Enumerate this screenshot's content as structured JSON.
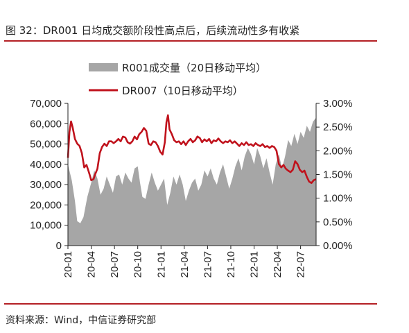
{
  "header": {
    "title": "图 32：DR001 日均成交额阶段性高点后，后续流动性多有收紧"
  },
  "footer": {
    "source": "资料来源：Wind，中信证券研究部"
  },
  "chart_data": {
    "type": "area+line",
    "legend": [
      "R001成交量（20日移动平均）",
      "DR007（10日移动平均）"
    ],
    "x_ticks": [
      "20-01",
      "20-04",
      "20-07",
      "20-10",
      "21-01",
      "21-04",
      "21-07",
      "21-10",
      "22-01",
      "22-04",
      "22-07"
    ],
    "y_left_ticks": [
      "70,000",
      "60,000",
      "50,000",
      "40,000",
      "30,000",
      "20,000",
      "10,000",
      "0"
    ],
    "y_right_ticks": [
      "3.00%",
      "2.50%",
      "2.00%",
      "1.50%",
      "1.00%",
      "0.50%",
      "0.00%"
    ],
    "ylim_left": [
      0,
      70000
    ],
    "ylim_right": [
      0,
      3.0
    ],
    "x_range_months": [
      0,
      32
    ],
    "series": [
      {
        "name": "R001成交量（20日移动平均）",
        "kind": "area",
        "color": "#a6a6a6",
        "points": [
          [
            0,
            40000
          ],
          [
            0.5,
            32000
          ],
          [
            0.9,
            22000
          ],
          [
            1.2,
            12000
          ],
          [
            1.6,
            11000
          ],
          [
            2.0,
            14000
          ],
          [
            2.5,
            24000
          ],
          [
            3.0,
            31000
          ],
          [
            3.4,
            37000
          ],
          [
            3.8,
            33000
          ],
          [
            4.2,
            25000
          ],
          [
            4.6,
            28000
          ],
          [
            5.0,
            34000
          ],
          [
            5.4,
            30000
          ],
          [
            5.8,
            26000
          ],
          [
            6.2,
            34000
          ],
          [
            6.6,
            35000
          ],
          [
            7.0,
            30000
          ],
          [
            7.4,
            36000
          ],
          [
            7.8,
            33000
          ],
          [
            8.2,
            31000
          ],
          [
            8.6,
            38000
          ],
          [
            9.0,
            39000
          ],
          [
            9.3,
            31000
          ],
          [
            9.6,
            24000
          ],
          [
            10.0,
            23000
          ],
          [
            10.4,
            30000
          ],
          [
            10.8,
            36000
          ],
          [
            11.2,
            31000
          ],
          [
            11.6,
            27000
          ],
          [
            12.0,
            30000
          ],
          [
            12.4,
            33000
          ],
          [
            12.8,
            20000
          ],
          [
            13.2,
            26000
          ],
          [
            13.6,
            34000
          ],
          [
            14.0,
            30000
          ],
          [
            14.4,
            35000
          ],
          [
            14.8,
            30000
          ],
          [
            15.2,
            22000
          ],
          [
            15.6,
            27000
          ],
          [
            16.0,
            31000
          ],
          [
            16.4,
            33000
          ],
          [
            16.8,
            27000
          ],
          [
            17.2,
            30000
          ],
          [
            17.6,
            37000
          ],
          [
            18.0,
            34000
          ],
          [
            18.4,
            38000
          ],
          [
            18.8,
            33000
          ],
          [
            19.2,
            30000
          ],
          [
            19.6,
            36000
          ],
          [
            20.0,
            40000
          ],
          [
            20.4,
            34000
          ],
          [
            20.8,
            28000
          ],
          [
            21.2,
            33000
          ],
          [
            21.6,
            39000
          ],
          [
            22.0,
            43000
          ],
          [
            22.4,
            37000
          ],
          [
            22.8,
            44000
          ],
          [
            23.2,
            48000
          ],
          [
            23.6,
            45000
          ],
          [
            24.0,
            40000
          ],
          [
            24.4,
            48000
          ],
          [
            24.8,
            44000
          ],
          [
            25.2,
            38000
          ],
          [
            25.6,
            43000
          ],
          [
            26.0,
            36000
          ],
          [
            26.4,
            30000
          ],
          [
            26.8,
            40000
          ],
          [
            27.2,
            45000
          ],
          [
            27.6,
            38000
          ],
          [
            28.0,
            44000
          ],
          [
            28.4,
            52000
          ],
          [
            28.8,
            49000
          ],
          [
            29.2,
            55000
          ],
          [
            29.6,
            50000
          ],
          [
            30.0,
            56000
          ],
          [
            30.4,
            53000
          ],
          [
            30.8,
            59000
          ],
          [
            31.2,
            56000
          ],
          [
            31.6,
            61000
          ],
          [
            32.0,
            63000
          ]
        ]
      },
      {
        "name": "DR007（10日移动平均）",
        "kind": "line",
        "color": "#c0121c",
        "points": [
          [
            0,
            1.85
          ],
          [
            0.2,
            2.4
          ],
          [
            0.4,
            2.62
          ],
          [
            0.6,
            2.5
          ],
          [
            0.9,
            2.25
          ],
          [
            1.2,
            2.15
          ],
          [
            1.5,
            2.1
          ],
          [
            1.8,
            1.95
          ],
          [
            2.1,
            1.65
          ],
          [
            2.4,
            1.7
          ],
          [
            2.7,
            1.55
          ],
          [
            3.0,
            1.38
          ],
          [
            3.3,
            1.4
          ],
          [
            3.5,
            1.5
          ],
          [
            3.8,
            1.62
          ],
          [
            4.1,
            1.95
          ],
          [
            4.4,
            2.08
          ],
          [
            4.7,
            2.15
          ],
          [
            5.0,
            2.1
          ],
          [
            5.3,
            2.2
          ],
          [
            5.6,
            2.2
          ],
          [
            5.9,
            2.16
          ],
          [
            6.2,
            2.2
          ],
          [
            6.5,
            2.25
          ],
          [
            6.8,
            2.2
          ],
          [
            7.1,
            2.3
          ],
          [
            7.4,
            2.28
          ],
          [
            7.7,
            2.18
          ],
          [
            8.0,
            2.15
          ],
          [
            8.3,
            2.2
          ],
          [
            8.6,
            2.3
          ],
          [
            8.9,
            2.24
          ],
          [
            9.2,
            2.35
          ],
          [
            9.5,
            2.4
          ],
          [
            9.8,
            2.48
          ],
          [
            10.1,
            2.42
          ],
          [
            10.4,
            2.15
          ],
          [
            10.7,
            2.12
          ],
          [
            11.0,
            2.2
          ],
          [
            11.3,
            2.18
          ],
          [
            11.6,
            2.1
          ],
          [
            11.9,
            1.98
          ],
          [
            12.2,
            1.92
          ],
          [
            12.5,
            2.18
          ],
          [
            12.7,
            2.6
          ],
          [
            12.9,
            2.75
          ],
          [
            13.1,
            2.45
          ],
          [
            13.4,
            2.35
          ],
          [
            13.7,
            2.22
          ],
          [
            14.0,
            2.18
          ],
          [
            14.3,
            2.2
          ],
          [
            14.6,
            2.14
          ],
          [
            14.9,
            2.2
          ],
          [
            15.2,
            2.12
          ],
          [
            15.5,
            2.2
          ],
          [
            15.8,
            2.25
          ],
          [
            16.1,
            2.18
          ],
          [
            16.4,
            2.22
          ],
          [
            16.7,
            2.3
          ],
          [
            17.0,
            2.27
          ],
          [
            17.3,
            2.18
          ],
          [
            17.6,
            2.24
          ],
          [
            17.9,
            2.2
          ],
          [
            18.2,
            2.25
          ],
          [
            18.5,
            2.16
          ],
          [
            18.8,
            2.22
          ],
          [
            19.1,
            2.2
          ],
          [
            19.4,
            2.26
          ],
          [
            19.7,
            2.2
          ],
          [
            20.0,
            2.16
          ],
          [
            20.3,
            2.2
          ],
          [
            20.6,
            2.18
          ],
          [
            20.9,
            2.22
          ],
          [
            21.2,
            2.16
          ],
          [
            21.5,
            2.2
          ],
          [
            21.8,
            2.15
          ],
          [
            22.1,
            2.1
          ],
          [
            22.4,
            2.16
          ],
          [
            22.7,
            2.12
          ],
          [
            23.0,
            2.18
          ],
          [
            23.3,
            2.12
          ],
          [
            23.6,
            2.14
          ],
          [
            23.9,
            2.1
          ],
          [
            24.2,
            2.16
          ],
          [
            24.5,
            2.12
          ],
          [
            24.8,
            2.1
          ],
          [
            25.1,
            2.14
          ],
          [
            25.4,
            2.08
          ],
          [
            25.7,
            2.1
          ],
          [
            26.0,
            2.06
          ],
          [
            26.3,
            2.1
          ],
          [
            26.6,
            2.08
          ],
          [
            26.9,
            2.0
          ],
          [
            27.2,
            1.72
          ],
          [
            27.5,
            1.65
          ],
          [
            27.8,
            1.7
          ],
          [
            28.1,
            1.62
          ],
          [
            28.4,
            1.58
          ],
          [
            28.7,
            1.55
          ],
          [
            29.0,
            1.6
          ],
          [
            29.3,
            1.78
          ],
          [
            29.6,
            1.72
          ],
          [
            29.9,
            1.6
          ],
          [
            30.2,
            1.55
          ],
          [
            30.5,
            1.58
          ],
          [
            30.8,
            1.45
          ],
          [
            31.1,
            1.35
          ],
          [
            31.4,
            1.32
          ],
          [
            31.7,
            1.38
          ],
          [
            32.0,
            1.4
          ]
        ]
      }
    ]
  }
}
